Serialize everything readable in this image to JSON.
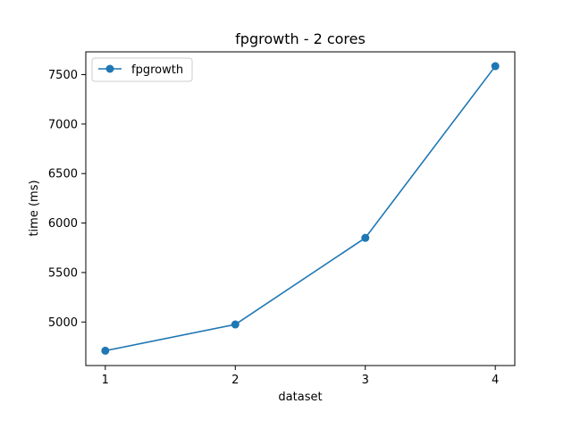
{
  "chart_data": {
    "type": "line",
    "title": "fpgrowth - 2 cores",
    "xlabel": "dataset",
    "ylabel": "time (ms)",
    "x": [
      1,
      2,
      3,
      4
    ],
    "xticks": [
      "1",
      "2",
      "3",
      "4"
    ],
    "xlim": [
      0.85,
      4.15
    ],
    "yticks": [
      "5000",
      "5500",
      "6000",
      "6500",
      "7000",
      "7500"
    ],
    "ytick_values": [
      5000,
      5500,
      6000,
      6500,
      7000,
      7500
    ],
    "ylim": [
      4560,
      7730
    ],
    "grid": false,
    "legend_position": "upper-left",
    "series": [
      {
        "name": "fpgrowth",
        "color": "#1f77b4",
        "marker": "circle",
        "values": [
          4710,
          4975,
          5850,
          7585
        ]
      }
    ]
  }
}
